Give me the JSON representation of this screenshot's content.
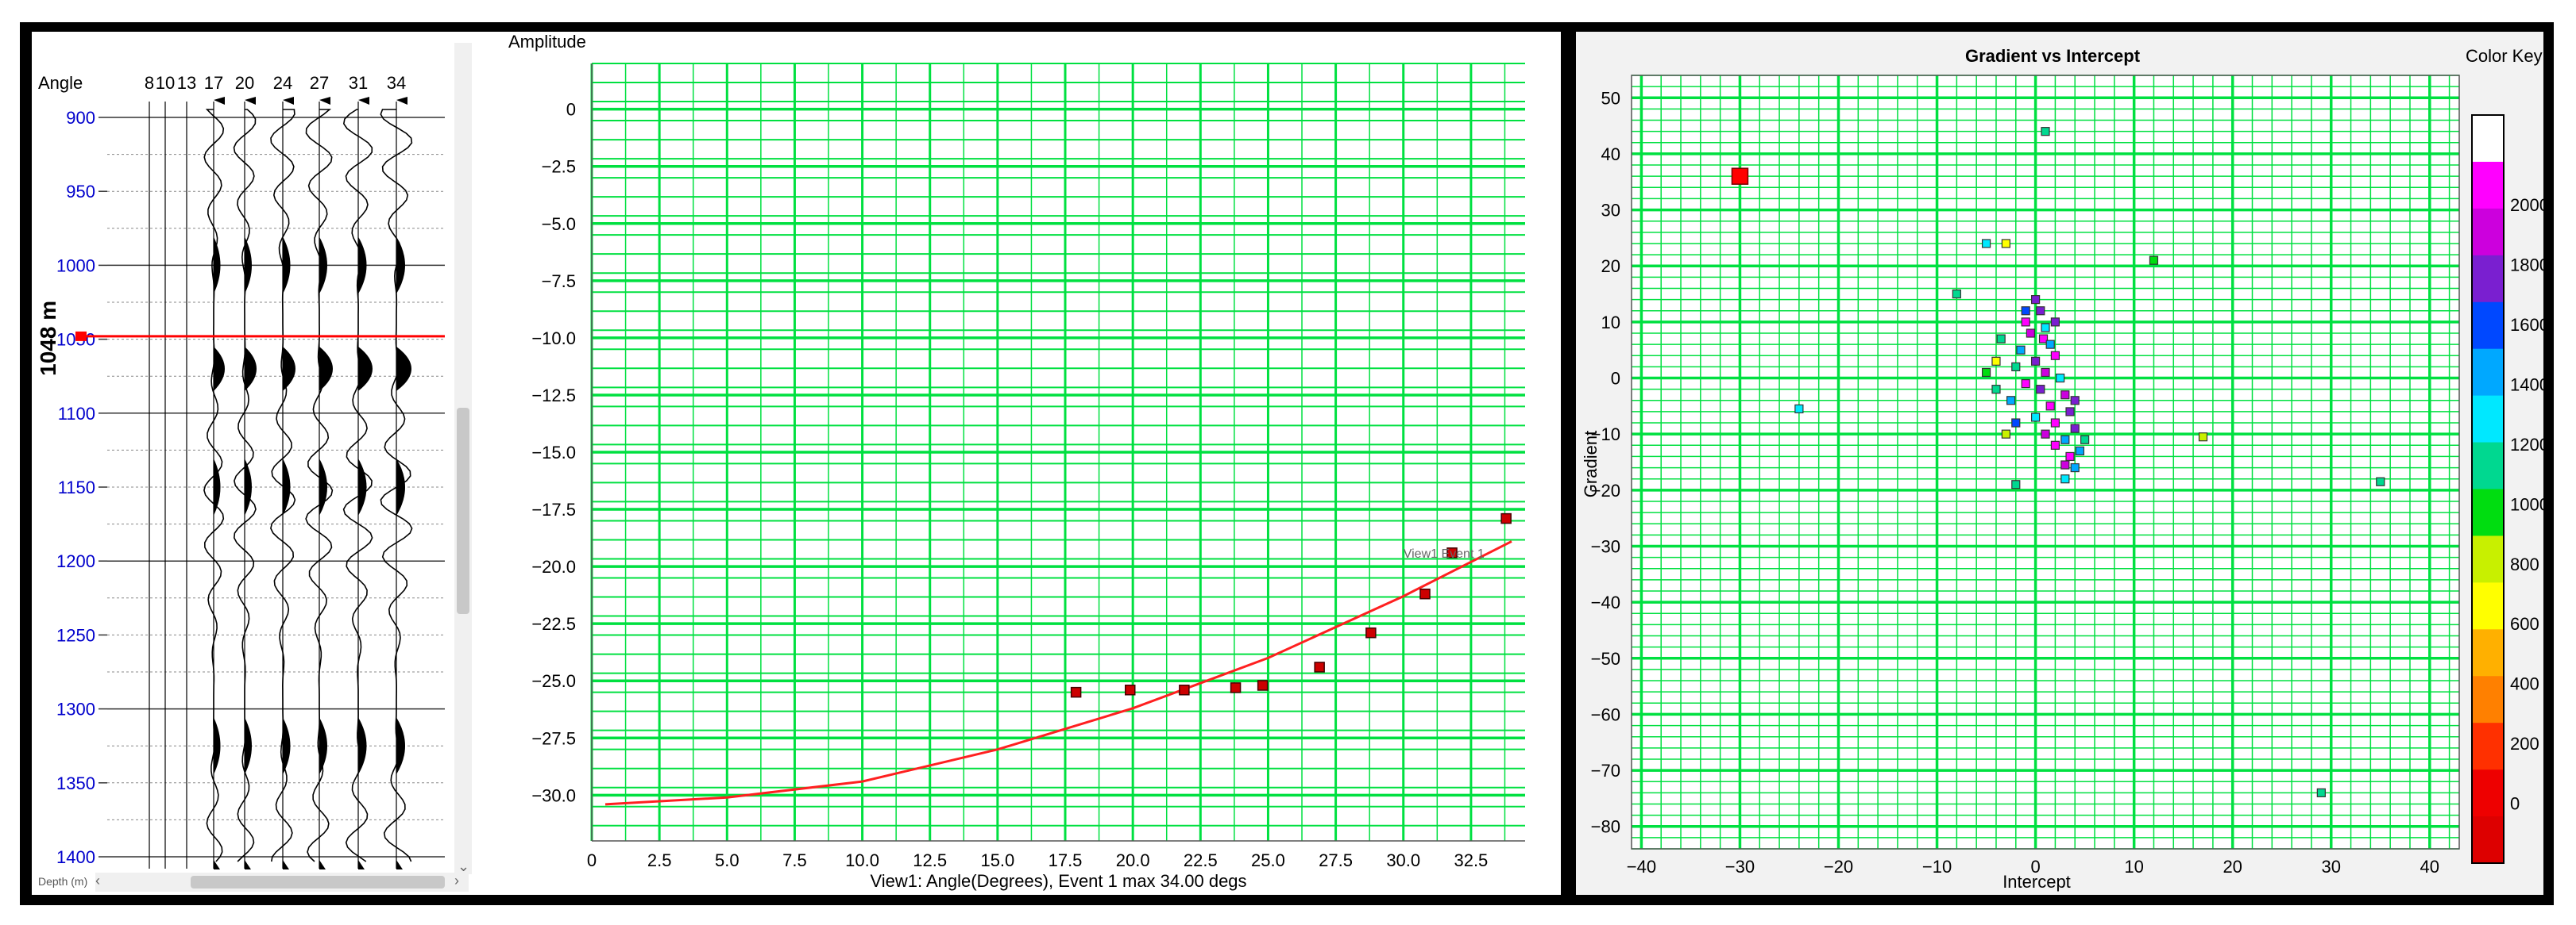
{
  "depth_panel": {
    "angle_label": "Angle",
    "angle_ticks": [
      "8",
      "10",
      "13",
      "17",
      "20",
      "24",
      "27",
      "31",
      "34"
    ],
    "depth_ticks": [
      "900",
      "950",
      "1000",
      "1050",
      "1100",
      "1150",
      "1200",
      "1250",
      "1300",
      "1350",
      "1400"
    ],
    "current_depth": "1048 m",
    "current_depth_value": 1048,
    "depth_range": [
      900,
      1400
    ],
    "axis_caption": "Depth (m)",
    "tick_color": "#0000cc",
    "marker_color": "#ff0000",
    "scroll_left_icon": "chevron-left-icon",
    "scroll_right_icon": "chevron-right-icon",
    "scroll_down_icon": "chevron-down-icon"
  },
  "amplitude_chart": {
    "chart_data": {
      "type": "scatter",
      "ylabel": "Amplitude",
      "xlabel": "View1: Angle(Degrees), Event 1 max 34.00 degs",
      "x_ticks": [
        "0",
        "2.5",
        "5.0",
        "7.5",
        "10.0",
        "12.5",
        "15.0",
        "17.5",
        "20.0",
        "22.5",
        "25.0",
        "27.5",
        "30.0",
        "32.5"
      ],
      "y_ticks": [
        "0",
        "−2.5",
        "−5.0",
        "−7.5",
        "−10.0",
        "−12.5",
        "−15.0",
        "−17.5",
        "−20.0",
        "−22.5",
        "−25.0",
        "−27.5",
        "−30.0"
      ],
      "xlim": [
        0,
        34.5
      ],
      "ylim": [
        -32,
        2
      ],
      "grid": true,
      "points": [
        {
          "x": 17.9,
          "y": -25.5
        },
        {
          "x": 19.9,
          "y": -25.4
        },
        {
          "x": 21.9,
          "y": -25.4
        },
        {
          "x": 23.8,
          "y": -25.3
        },
        {
          "x": 24.8,
          "y": -25.2
        },
        {
          "x": 26.9,
          "y": -24.4
        },
        {
          "x": 28.8,
          "y": -22.9
        },
        {
          "x": 30.8,
          "y": -21.2
        },
        {
          "x": 31.8,
          "y": -19.4
        },
        {
          "x": 33.8,
          "y": -17.9
        }
      ],
      "fit_curve": [
        {
          "x": 0.5,
          "y": -30.4
        },
        {
          "x": 5,
          "y": -30.1
        },
        {
          "x": 10,
          "y": -29.4
        },
        {
          "x": 15,
          "y": -28.0
        },
        {
          "x": 20,
          "y": -26.2
        },
        {
          "x": 25,
          "y": -24.0
        },
        {
          "x": 30,
          "y": -21.3
        },
        {
          "x": 34,
          "y": -18.9
        }
      ],
      "annotation": "View1 Event 1",
      "point_color": "#cc0000",
      "curve_color": "#ff2020",
      "grid_color": "#00e040"
    }
  },
  "crossplot": {
    "chart_data": {
      "type": "scatter",
      "title": "Gradient vs Intercept",
      "xlabel": "Intercept",
      "ylabel": "Gradient",
      "x_ticks": [
        "−40",
        "−30",
        "−20",
        "−10",
        "0",
        "10",
        "20",
        "30",
        "40"
      ],
      "y_ticks": [
        "50",
        "40",
        "30",
        "20",
        "10",
        "0",
        "−10",
        "−20",
        "−30",
        "−40",
        "−50",
        "−60",
        "−70",
        "−80"
      ],
      "xlim": [
        -41,
        43
      ],
      "ylim": [
        -84,
        54
      ],
      "grid": true,
      "grid_color": "#00e040",
      "highlight_point": {
        "x": -30,
        "y": 36,
        "color": "#ff0000"
      },
      "points": [
        {
          "x": 1,
          "y": 44,
          "v": 1100
        },
        {
          "x": 12,
          "y": 21,
          "v": 900
        },
        {
          "x": -3,
          "y": 24,
          "v": 700
        },
        {
          "x": -5,
          "y": 24,
          "v": 1300
        },
        {
          "x": -8,
          "y": 15,
          "v": 1150
        },
        {
          "x": -24,
          "y": -5.5,
          "v": 1250
        },
        {
          "x": 17,
          "y": -10.5,
          "v": 850
        },
        {
          "x": 35,
          "y": -18.5,
          "v": 1150
        },
        {
          "x": 29,
          "y": -74,
          "v": 1200
        },
        {
          "x": -2,
          "y": -19,
          "v": 1100
        },
        {
          "x": 3,
          "y": -18,
          "v": 1300
        },
        {
          "x": 4,
          "y": -16,
          "v": 1500
        },
        {
          "x": 5,
          "y": -11,
          "v": 1200
        },
        {
          "x": -4,
          "y": 3,
          "v": 700
        },
        {
          "x": -5,
          "y": 1,
          "v": 900
        },
        {
          "x": -3,
          "y": -10,
          "v": 800
        },
        {
          "x": 0,
          "y": 14,
          "v": 1700
        },
        {
          "x": 0.5,
          "y": 12,
          "v": 1700
        },
        {
          "x": -1,
          "y": 10,
          "v": 2000
        },
        {
          "x": 1,
          "y": 9,
          "v": 1300
        },
        {
          "x": -0.5,
          "y": 8,
          "v": 1900
        },
        {
          "x": 0.8,
          "y": 7,
          "v": 2100
        },
        {
          "x": 1.5,
          "y": 6,
          "v": 1500
        },
        {
          "x": -1.5,
          "y": 5,
          "v": 1400
        },
        {
          "x": 2,
          "y": 4,
          "v": 2000
        },
        {
          "x": 0,
          "y": 3,
          "v": 1800
        },
        {
          "x": -2,
          "y": 2,
          "v": 1200
        },
        {
          "x": 1,
          "y": 1,
          "v": 1900
        },
        {
          "x": 2.5,
          "y": 0,
          "v": 1300
        },
        {
          "x": -1,
          "y": -1,
          "v": 2000
        },
        {
          "x": 0.5,
          "y": -2,
          "v": 1700
        },
        {
          "x": 3,
          "y": -3,
          "v": 1900
        },
        {
          "x": -2.5,
          "y": -4,
          "v": 1400
        },
        {
          "x": 1.5,
          "y": -5,
          "v": 2000
        },
        {
          "x": 3.5,
          "y": -6,
          "v": 1800
        },
        {
          "x": 0,
          "y": -7,
          "v": 1300
        },
        {
          "x": 2,
          "y": -8,
          "v": 2100
        },
        {
          "x": 4,
          "y": -9,
          "v": 1700
        },
        {
          "x": 1,
          "y": -10,
          "v": 1900
        },
        {
          "x": 3,
          "y": -11,
          "v": 1400
        },
        {
          "x": 2,
          "y": -12,
          "v": 2000
        },
        {
          "x": 4.5,
          "y": -13,
          "v": 1500
        },
        {
          "x": 3.5,
          "y": -14,
          "v": 2000
        },
        {
          "x": 3,
          "y": -15.5,
          "v": 1900
        },
        {
          "x": -3.5,
          "y": 7,
          "v": 1100
        },
        {
          "x": -4,
          "y": -2,
          "v": 1200
        },
        {
          "x": -1,
          "y": 12,
          "v": 1600
        },
        {
          "x": 2,
          "y": 10,
          "v": 1800
        },
        {
          "x": -2,
          "y": -8,
          "v": 1600
        },
        {
          "x": 4,
          "y": -4,
          "v": 1700
        }
      ]
    },
    "legend": {
      "title": "Color Key",
      "ticks": [
        "2000",
        "1800",
        "1600",
        "1400",
        "1200",
        "1000",
        "800",
        "600",
        "400",
        "200",
        "0"
      ],
      "bands": [
        "#ffffff",
        "#ff00ff",
        "#cc00dd",
        "#7a1fd0",
        "#0048ff",
        "#00a8ff",
        "#00e8ff",
        "#00d890",
        "#00dd10",
        "#c8f000",
        "#ffff00",
        "#ffb000",
        "#ff8000",
        "#ff3000",
        "#ee0000",
        "#dd0000"
      ]
    }
  }
}
